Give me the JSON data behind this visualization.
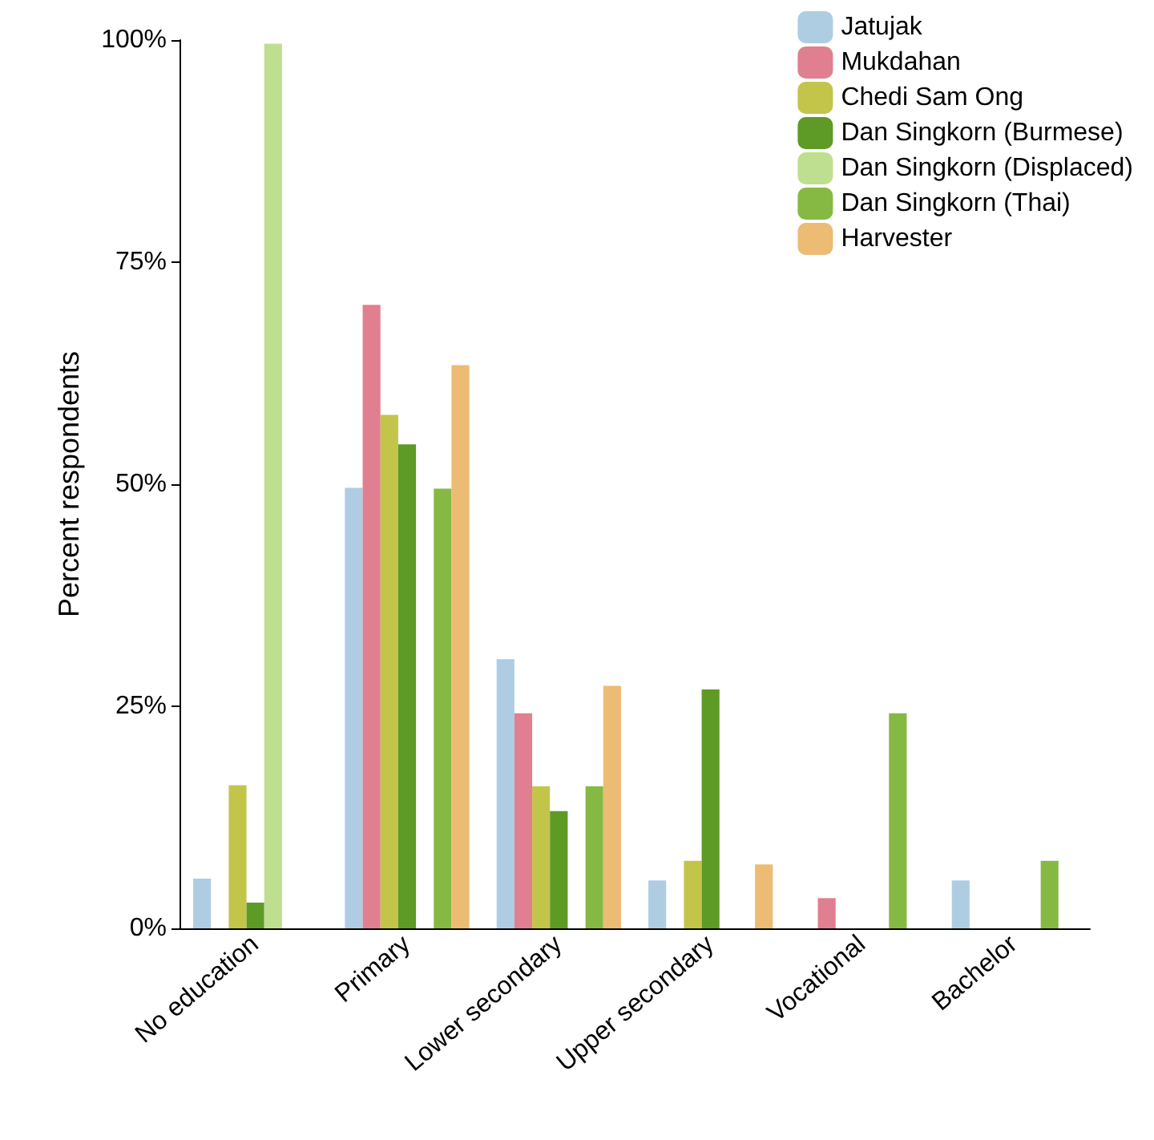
{
  "chart_data": {
    "type": "bar",
    "ylabel": "Percent respondents",
    "categories": [
      "No education",
      "Primary",
      "Lower secondary",
      "Upper secondary",
      "Vocational",
      "Bachelor"
    ],
    "series": [
      {
        "name": "Jatujak",
        "color": "#aecde3",
        "values": [
          5.6,
          49.6,
          30.3,
          5.4,
          null,
          5.4
        ]
      },
      {
        "name": "Mukdahan",
        "color": "#e07f8f",
        "values": [
          null,
          70.2,
          24.2,
          null,
          3.4,
          null
        ]
      },
      {
        "name": "Chedi Sam Ong",
        "color": "#c2c54a",
        "values": [
          16.1,
          57.8,
          16,
          7.6,
          null,
          null
        ]
      },
      {
        "name": "Dan Singkorn (Burmese)",
        "color": "#5e9a26",
        "values": [
          2.9,
          54.5,
          13.2,
          26.9,
          null,
          null
        ]
      },
      {
        "name": "Dan Singkorn (Displaced)",
        "color": "#bfdf90",
        "values": [
          99.6,
          null,
          null,
          null,
          null,
          null
        ]
      },
      {
        "name": "Dan Singkorn (Thai)",
        "color": "#86b944",
        "values": [
          null,
          49.5,
          16,
          null,
          24.2,
          7.6
        ]
      },
      {
        "name": "Harvester",
        "color": "#ecbc74",
        "values": [
          null,
          63.4,
          27.3,
          7.2,
          null,
          null
        ]
      }
    ],
    "ylim": [
      0,
      100
    ],
    "yticks": [
      {
        "value": 0,
        "label": "0%"
      },
      {
        "value": 25,
        "label": "25%"
      },
      {
        "value": 50,
        "label": "50%"
      },
      {
        "value": 75,
        "label": "75%"
      },
      {
        "value": 100,
        "label": "100%"
      }
    ],
    "grid": false,
    "legend": "top right"
  }
}
